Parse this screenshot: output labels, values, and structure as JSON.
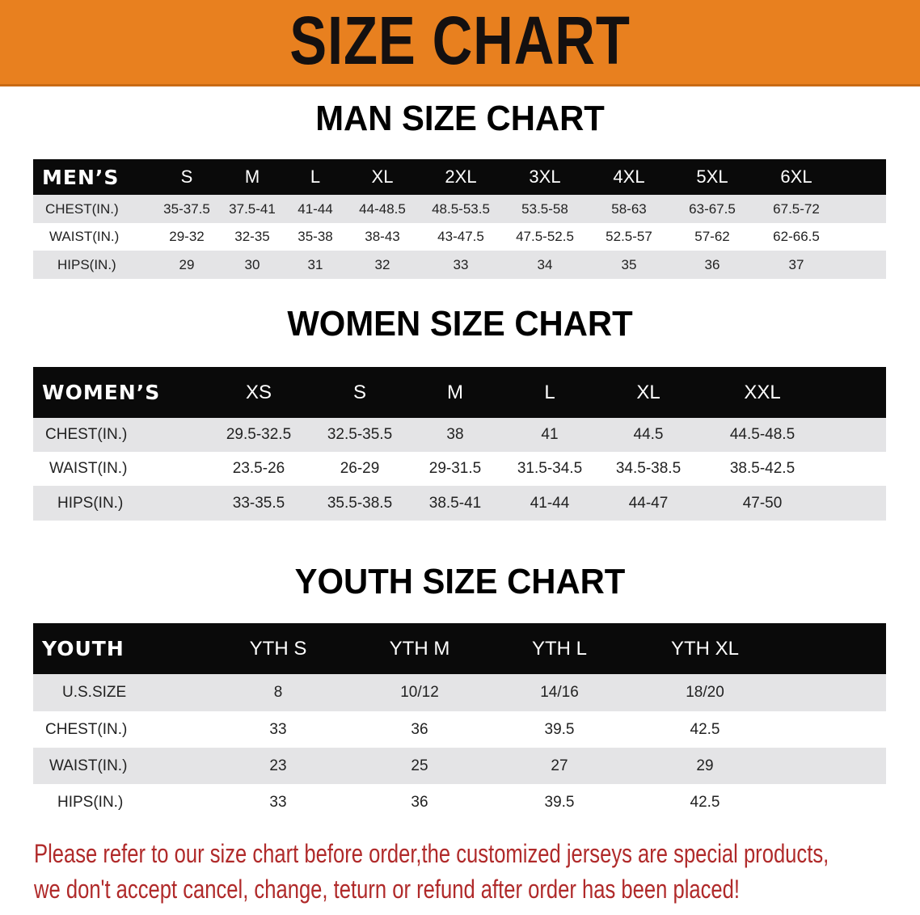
{
  "banner": {
    "title": "SIZE CHART",
    "color": "#e8801f"
  },
  "men": {
    "title": "MAN SIZE CHART",
    "header": "MEN’S",
    "sizes": [
      "S",
      "M",
      "L",
      "XL",
      "2XL",
      "3XL",
      "4XL",
      "5XL",
      "6XL"
    ],
    "rows": [
      {
        "label": "CHEST(IN.)",
        "values": [
          "35-37.5",
          "37.5-41",
          "41-44",
          "44-48.5",
          "48.5-53.5",
          "53.5-58",
          "58-63",
          "63-67.5",
          "67.5-72"
        ]
      },
      {
        "label": "WAIST(IN.)",
        "values": [
          "29-32",
          "32-35",
          "35-38",
          "38-43",
          "43-47.5",
          "47.5-52.5",
          "52.5-57",
          "57-62",
          "62-66.5"
        ]
      },
      {
        "label": "HIPS(IN.)",
        "values": [
          "29",
          "30",
          "31",
          "32",
          "33",
          "34",
          "35",
          "36",
          "37"
        ]
      }
    ]
  },
  "women": {
    "title": "WOMEN SIZE CHART",
    "header": "WOMEN’S",
    "sizes": [
      "XS",
      "S",
      "M",
      "L",
      "XL",
      "XXL"
    ],
    "rows": [
      {
        "label": "CHEST(IN.)",
        "values": [
          "29.5-32.5",
          "32.5-35.5",
          "38",
          "41",
          "44.5",
          "44.5-48.5"
        ]
      },
      {
        "label": "WAIST(IN.)",
        "values": [
          "23.5-26",
          "26-29",
          "29-31.5",
          "31.5-34.5",
          "34.5-38.5",
          "38.5-42.5"
        ]
      },
      {
        "label": "HIPS(IN.)",
        "values": [
          "33-35.5",
          "35.5-38.5",
          "38.5-41",
          "41-44",
          "44-47",
          "47-50"
        ]
      }
    ]
  },
  "youth": {
    "title": "YOUTH SIZE CHART",
    "header": "YOUTH",
    "sizes": [
      "YTH S",
      "YTH M",
      "YTH L",
      "YTH XL"
    ],
    "rows": [
      {
        "label": "U.S.SIZE",
        "values": [
          "8",
          "10/12",
          "14/16",
          "18/20"
        ]
      },
      {
        "label": "CHEST(IN.)",
        "values": [
          "33",
          "36",
          "39.5",
          "42.5"
        ]
      },
      {
        "label": "WAIST(IN.)",
        "values": [
          "23",
          "25",
          "27",
          "29"
        ]
      },
      {
        "label": "HIPS(IN.)",
        "values": [
          "33",
          "36",
          "39.5",
          "42.5"
        ]
      }
    ]
  },
  "notice": {
    "line1": "Please refer to our size chart before order,the customized jerseys are special products,",
    "line2": "we don't accept cancel, change, teturn or refund after order has been placed!",
    "color": "#b02a2a"
  }
}
